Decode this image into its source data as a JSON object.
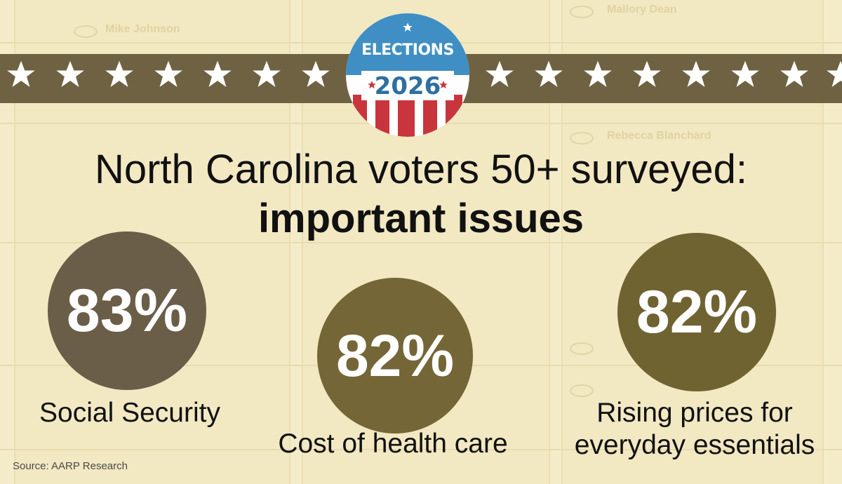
{
  "badge": {
    "line1": "ELECTIONS",
    "line2": "2026",
    "colors": {
      "blue": "#3f8fc4",
      "red": "#c8353c",
      "white": "#ffffff",
      "year": "#2f6f9f"
    }
  },
  "background": {
    "ballot_names": [
      "Mike Johnson",
      "Mallory Dean",
      "Rebecca Blanchard"
    ]
  },
  "band": {
    "color": "#6f6243",
    "star_icon": "star-icon"
  },
  "headline": {
    "title": "North Carolina voters 50+ surveyed:",
    "subtitle": "important issues"
  },
  "stats": [
    {
      "value": "83%",
      "label": "Social Security",
      "color": "#6a5e48"
    },
    {
      "value": "82%",
      "label": "Cost of health care",
      "color": "#756637"
    },
    {
      "value": "82%",
      "label_line1": "Rising prices for",
      "label_line2": "everyday essentials",
      "color": "#6f6332"
    }
  ],
  "source": "Source: AARP Research"
}
